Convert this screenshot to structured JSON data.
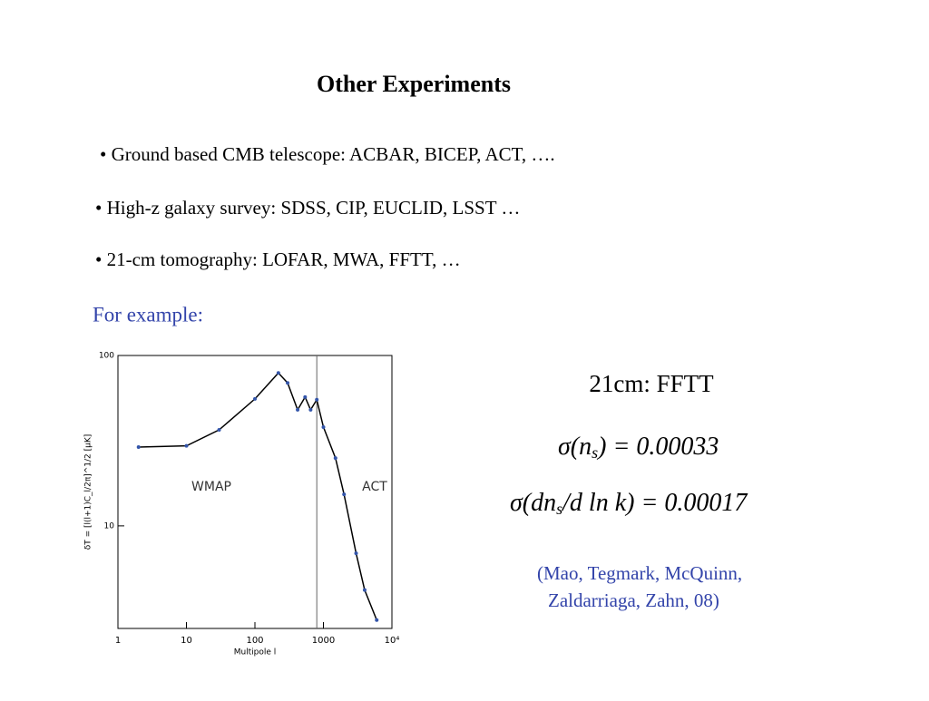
{
  "header": {
    "title": "Other Experiments"
  },
  "bullets": [
    "• Ground based CMB telescope: ACBAR, BICEP, ACT, ….",
    "• High-z galaxy survey: SDSS, CIP, EUCLID, LSST …",
    "• 21-cm tomography: LOFAR, MWA, FFTT, …"
  ],
  "example_label": "For example:",
  "figure": {
    "type": "line",
    "xlabel": "Multipole l",
    "ylabel": "δT = [l(l+1)C_l/2π]^1/2 [μK]",
    "log_x": true,
    "log_y": true,
    "xlim": [
      1,
      10000
    ],
    "xticks": [
      1,
      10,
      100,
      1000,
      {
        "value": 10000,
        "label": "10⁴"
      }
    ],
    "ylim": [
      2.5,
      100
    ],
    "yticks": [
      10,
      100
    ],
    "annotations": [
      "WMAP",
      "ACT"
    ],
    "divider_x": 800,
    "series": [
      {
        "color": "#000000",
        "x": [
          2,
          10,
          30,
          100,
          220,
          300,
          420,
          540,
          650,
          800,
          1000,
          1500,
          2000,
          3000,
          4000,
          6000
        ],
        "values": [
          29,
          29.5,
          36.6,
          55.6,
          79,
          69,
          48,
          57,
          48,
          55,
          38,
          25,
          15.3,
          6.9,
          4.2,
          2.8
        ]
      }
    ]
  },
  "result": {
    "title": "21cm: FFTT",
    "equations": [
      {
        "left": "σ(n",
        "sub": "s",
        "right": ") = 0.00033"
      },
      {
        "left": "σ(dn",
        "sub": "s",
        "right": "/d ln k) = 0.00017"
      }
    ],
    "citation": [
      "(Mao, Tegmark, McQuinn,",
      "Zaldarriaga, Zahn, 08)"
    ]
  }
}
